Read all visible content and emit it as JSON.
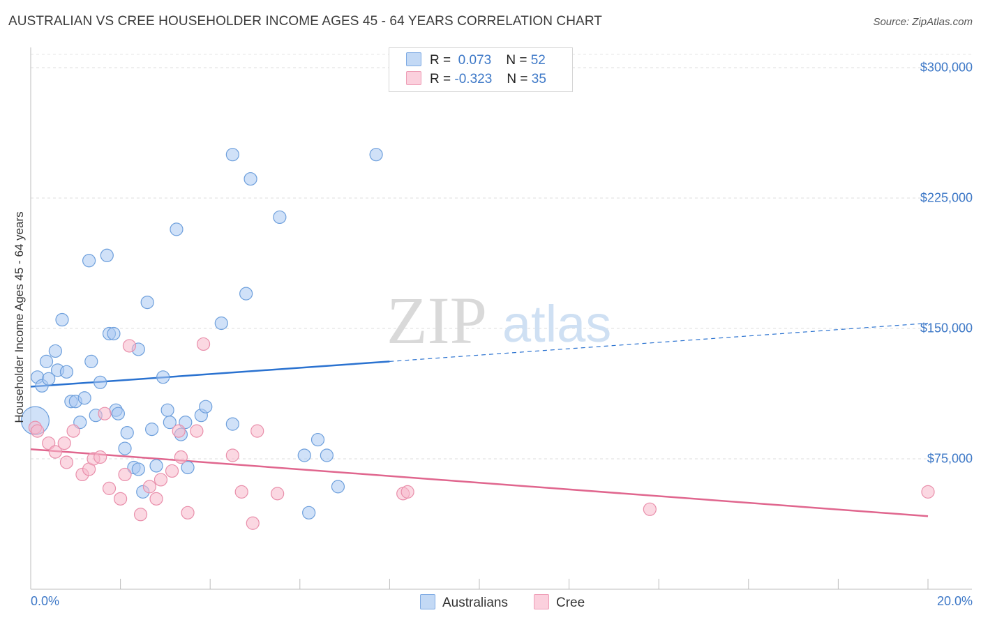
{
  "title": "AUSTRALIAN VS CREE HOUSEHOLDER INCOME AGES 45 - 64 YEARS CORRELATION CHART",
  "source": "Source: ZipAtlas.com",
  "watermark": {
    "zip": "ZIP",
    "atlas": "atlas"
  },
  "legend_stats": [
    {
      "r_label": "R =",
      "r_value": "0.073",
      "n_label": "N =",
      "n_value": "52",
      "color": "#a9c9f2"
    },
    {
      "r_label": "R =",
      "r_value": "-0.323",
      "n_label": "N =",
      "n_value": "35",
      "color": "#f7b8cb"
    }
  ],
  "chart_data": {
    "type": "scatter",
    "title": "AUSTRALIAN VS CREE HOUSEHOLDER INCOME AGES 45 - 64 YEARS CORRELATION CHART",
    "xlabel": "",
    "ylabel": "Householder Income Ages 45 - 64 years",
    "x_tick_labels": [
      "0.0%",
      "20.0%"
    ],
    "y_tick_labels": [
      "$300,000",
      "$225,000",
      "$150,000",
      "$75,000"
    ],
    "y_ticks": [
      300000,
      225000,
      150000,
      75000
    ],
    "xlim": [
      0,
      20
    ],
    "ylim": [
      0,
      310000
    ],
    "grid": true,
    "legend_position": "bottom-center",
    "series": [
      {
        "name": "Australians",
        "color": "#a9c9f2",
        "stroke": "#6d9fdc",
        "trend": {
          "x0": 0.0,
          "y0": 116500,
          "x1": 8.0,
          "y1": 131000,
          "x_dash_end": 20.0,
          "y_dash_end": 153000,
          "color": "#2a72d0"
        },
        "points": [
          {
            "x": 0.1,
            "y": 97000,
            "big": true
          },
          {
            "x": 0.15,
            "y": 122000
          },
          {
            "x": 0.25,
            "y": 117000
          },
          {
            "x": 0.35,
            "y": 131000
          },
          {
            "x": 0.4,
            "y": 121000
          },
          {
            "x": 0.55,
            "y": 137000
          },
          {
            "x": 0.6,
            "y": 126000
          },
          {
            "x": 0.7,
            "y": 155000
          },
          {
            "x": 0.8,
            "y": 125000
          },
          {
            "x": 0.9,
            "y": 108000
          },
          {
            "x": 1.0,
            "y": 108000
          },
          {
            "x": 1.1,
            "y": 96000
          },
          {
            "x": 1.2,
            "y": 110000
          },
          {
            "x": 1.3,
            "y": 189000
          },
          {
            "x": 1.35,
            "y": 131000
          },
          {
            "x": 1.45,
            "y": 100000
          },
          {
            "x": 1.55,
            "y": 119000
          },
          {
            "x": 1.7,
            "y": 192000
          },
          {
            "x": 1.75,
            "y": 147000
          },
          {
            "x": 1.85,
            "y": 147000
          },
          {
            "x": 1.9,
            "y": 103000
          },
          {
            "x": 1.95,
            "y": 101000
          },
          {
            "x": 2.1,
            "y": 81000
          },
          {
            "x": 2.15,
            "y": 90000
          },
          {
            "x": 2.3,
            "y": 70000
          },
          {
            "x": 2.4,
            "y": 69000
          },
          {
            "x": 2.4,
            "y": 138000
          },
          {
            "x": 2.5,
            "y": 56000
          },
          {
            "x": 2.6,
            "y": 165000
          },
          {
            "x": 2.7,
            "y": 92000
          },
          {
            "x": 2.8,
            "y": 71000
          },
          {
            "x": 2.95,
            "y": 122000
          },
          {
            "x": 3.05,
            "y": 103000
          },
          {
            "x": 3.1,
            "y": 96000
          },
          {
            "x": 3.25,
            "y": 207000
          },
          {
            "x": 3.35,
            "y": 89000
          },
          {
            "x": 3.45,
            "y": 96000
          },
          {
            "x": 3.5,
            "y": 70000
          },
          {
            "x": 3.8,
            "y": 100000
          },
          {
            "x": 3.9,
            "y": 105000
          },
          {
            "x": 4.25,
            "y": 153000
          },
          {
            "x": 4.5,
            "y": 95000
          },
          {
            "x": 4.5,
            "y": 250000
          },
          {
            "x": 4.8,
            "y": 170000
          },
          {
            "x": 4.9,
            "y": 236000
          },
          {
            "x": 5.55,
            "y": 214000
          },
          {
            "x": 6.1,
            "y": 77000
          },
          {
            "x": 6.2,
            "y": 44000
          },
          {
            "x": 6.4,
            "y": 86000
          },
          {
            "x": 6.6,
            "y": 77000
          },
          {
            "x": 6.85,
            "y": 59000
          },
          {
            "x": 7.7,
            "y": 250000
          }
        ]
      },
      {
        "name": "Cree",
        "color": "#f7b8cb",
        "stroke": "#e98fab",
        "trend": {
          "x0": 0.0,
          "y0": 80500,
          "x1": 20.0,
          "y1": 42000,
          "color": "#e0668e"
        },
        "points": [
          {
            "x": 0.1,
            "y": 93000
          },
          {
            "x": 0.15,
            "y": 91000
          },
          {
            "x": 0.4,
            "y": 84000
          },
          {
            "x": 0.55,
            "y": 79000
          },
          {
            "x": 0.75,
            "y": 84000
          },
          {
            "x": 0.8,
            "y": 73000
          },
          {
            "x": 0.95,
            "y": 91000
          },
          {
            "x": 1.15,
            "y": 66000
          },
          {
            "x": 1.3,
            "y": 69000
          },
          {
            "x": 1.4,
            "y": 75000
          },
          {
            "x": 1.55,
            "y": 76000
          },
          {
            "x": 1.65,
            "y": 101000
          },
          {
            "x": 1.75,
            "y": 58000
          },
          {
            "x": 2.0,
            "y": 52000
          },
          {
            "x": 2.1,
            "y": 66000
          },
          {
            "x": 2.2,
            "y": 140000
          },
          {
            "x": 2.45,
            "y": 43000
          },
          {
            "x": 2.65,
            "y": 59000
          },
          {
            "x": 2.8,
            "y": 52000
          },
          {
            "x": 2.9,
            "y": 63000
          },
          {
            "x": 3.15,
            "y": 68000
          },
          {
            "x": 3.3,
            "y": 91000
          },
          {
            "x": 3.35,
            "y": 76000
          },
          {
            "x": 3.5,
            "y": 44000
          },
          {
            "x": 3.7,
            "y": 91000
          },
          {
            "x": 3.85,
            "y": 141000
          },
          {
            "x": 4.5,
            "y": 77000
          },
          {
            "x": 4.7,
            "y": 56000
          },
          {
            "x": 4.95,
            "y": 38000
          },
          {
            "x": 5.05,
            "y": 91000
          },
          {
            "x": 5.5,
            "y": 55000
          },
          {
            "x": 8.3,
            "y": 55000
          },
          {
            "x": 8.4,
            "y": 56000
          },
          {
            "x": 13.8,
            "y": 46000
          },
          {
            "x": 20.0,
            "y": 56000
          }
        ]
      }
    ]
  }
}
